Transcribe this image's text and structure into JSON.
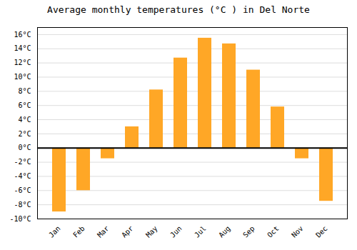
{
  "chart_data": {
    "type": "bar",
    "title": "Average monthly temperatures (°C ) in Del Norte",
    "categories": [
      "Jan",
      "Feb",
      "Mar",
      "Apr",
      "May",
      "Jun",
      "Jul",
      "Aug",
      "Sep",
      "Oct",
      "Nov",
      "Dec"
    ],
    "values": [
      -9,
      -6,
      -1.5,
      3,
      8.2,
      12.7,
      15.5,
      14.7,
      11,
      5.8,
      -1.5,
      -7.5
    ],
    "color": "#FFA726",
    "ylim": [
      -10,
      17
    ],
    "yticks": [
      {
        "value": -10,
        "label": "-10°C"
      },
      {
        "value": -8,
        "label": "-8°C"
      },
      {
        "value": -6,
        "label": "-6°C"
      },
      {
        "value": -4,
        "label": "-4°C"
      },
      {
        "value": -2,
        "label": "-2°C"
      },
      {
        "value": 0,
        "label": "0°C"
      },
      {
        "value": 2,
        "label": "2°C"
      },
      {
        "value": 4,
        "label": "4°C"
      },
      {
        "value": 6,
        "label": "6°C"
      },
      {
        "value": 8,
        "label": "8°C"
      },
      {
        "value": 10,
        "label": "10°C"
      },
      {
        "value": 12,
        "label": "12°C"
      },
      {
        "value": 14,
        "label": "14°C"
      },
      {
        "value": 16,
        "label": "16°C"
      }
    ],
    "grid": true
  }
}
